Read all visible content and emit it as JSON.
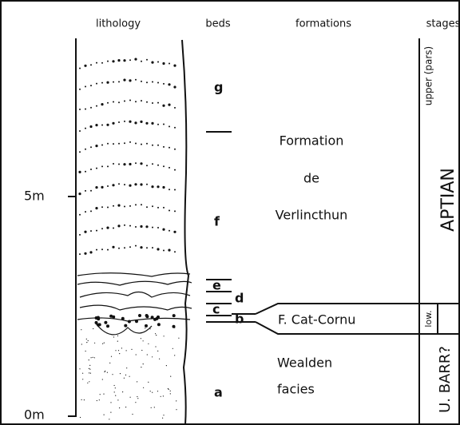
{
  "header": {
    "lithology": "lithology",
    "beds": "beds",
    "formations": "formations",
    "stages": "stages"
  },
  "scale": [
    "5m",
    "0m"
  ],
  "beds": [
    "g",
    "f",
    "e",
    "d",
    "c",
    "b",
    "a"
  ],
  "formations": {
    "verlincthun": [
      "Formation",
      "de",
      "Verlincthun"
    ],
    "cat_cornu": "F. Cat-Cornu",
    "wealden": [
      "Wealden",
      "facies"
    ]
  },
  "stages": {
    "upper": "upper (pars)",
    "aptian": "APTIAN",
    "lower": "low.",
    "barremian": "U. BARR?"
  }
}
